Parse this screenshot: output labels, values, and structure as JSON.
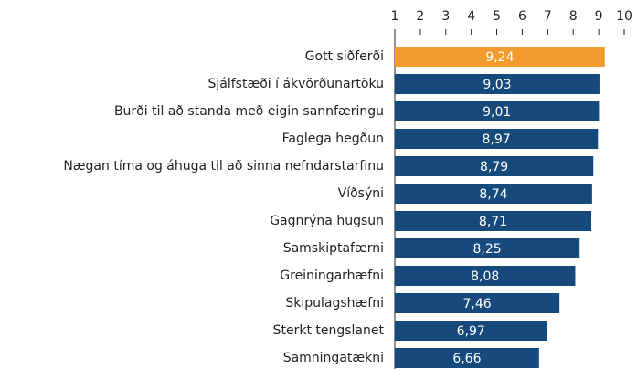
{
  "chart_data": {
    "type": "barh",
    "categories": [
      "Gott siðferði",
      "Sjálfstæði í ákvörðunartöku",
      "Burði til að standa með eigin sannfæringu",
      "Faglega hegðun",
      "Nægan tíma og áhuga til að sinna nefndarstarfinu",
      "Víðsýni",
      "Gagnrýna hugsun",
      "Samskiptafærni",
      "Greiningarhæfni",
      "Skipulagshæfni",
      "Sterkt tengslanet",
      "Samningatækni"
    ],
    "values": [
      9.24,
      9.03,
      9.01,
      8.97,
      8.79,
      8.74,
      8.71,
      8.25,
      8.08,
      7.46,
      6.97,
      6.66
    ],
    "value_labels": [
      "9,24",
      "9,03",
      "9,01",
      "8,97",
      "8,79",
      "8,74",
      "8,71",
      "8,25",
      "8,08",
      "7,46",
      "6,97",
      "6,66"
    ],
    "colors": [
      "#f39a2e",
      "#174a7c",
      "#174a7c",
      "#174a7c",
      "#174a7c",
      "#174a7c",
      "#174a7c",
      "#174a7c",
      "#174a7c",
      "#174a7c",
      "#174a7c",
      "#174a7c"
    ],
    "xlim": [
      1,
      10
    ],
    "xticks": [
      1,
      2,
      3,
      4,
      5,
      6,
      7,
      8,
      9,
      10
    ]
  }
}
